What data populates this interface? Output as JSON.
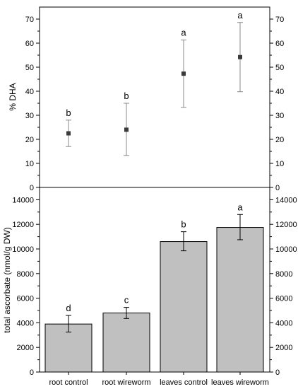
{
  "chart_data": [
    {
      "type": "scatter",
      "categories": [
        "root control",
        "root wireworm",
        "leaves control",
        "leaves wireworm"
      ],
      "values": [
        22.5,
        24.0,
        47.3,
        54.2
      ],
      "error_low": [
        17.0,
        13.3,
        33.3,
        39.8
      ],
      "error_high": [
        28.0,
        35.0,
        61.3,
        68.6
      ],
      "significance": [
        "b",
        "b",
        "a",
        "a"
      ],
      "ylabel": "% DHA",
      "ylim": [
        0,
        75
      ],
      "yticks": [
        "0",
        "10",
        "20",
        "30",
        "40",
        "50",
        "60",
        "70"
      ],
      "marker_color": "#3a3a3a",
      "errorbar_color": "#888888",
      "grid": false,
      "mirror_right_axis": true
    },
    {
      "type": "bar",
      "categories": [
        "root control",
        "root wireworm",
        "leaves control",
        "leaves wireworm"
      ],
      "values": [
        3900,
        4800,
        10600,
        11750
      ],
      "error_low": [
        3250,
        4350,
        9850,
        10750
      ],
      "error_high": [
        4600,
        5250,
        11400,
        12800
      ],
      "significance": [
        "d",
        "c",
        "b",
        "a"
      ],
      "ylabel": "total ascorbate (nmol/g DW)",
      "ylim": [
        0,
        15000
      ],
      "yticks": [
        "0",
        "2000",
        "4000",
        "6000",
        "8000",
        "10000",
        "12000",
        "14000"
      ],
      "bar_color": "#c0c0c0",
      "bar_edge_color": "#000000",
      "grid": false,
      "mirror_right_axis": true
    }
  ]
}
